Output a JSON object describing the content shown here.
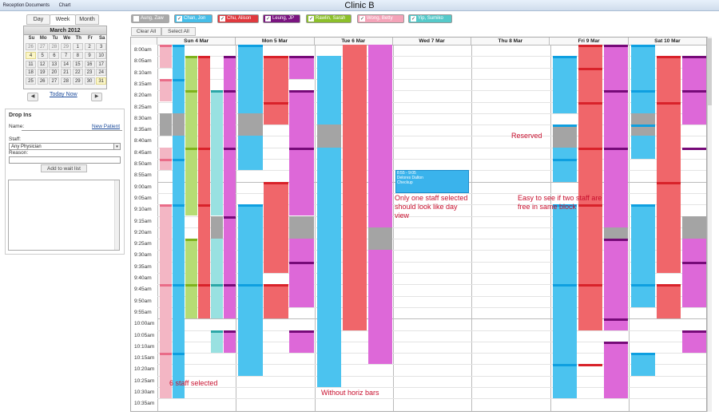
{
  "top_tabs": [
    "Reception",
    "Documents",
    "Chart"
  ],
  "clinic_title": "Clinic B",
  "view_tabs": [
    "Day",
    "Week",
    "Month"
  ],
  "calendar": {
    "month_label": "March 2012",
    "day_headers": [
      "Su",
      "Mo",
      "Tu",
      "We",
      "Th",
      "Fr",
      "Sa"
    ],
    "weeks": [
      [
        "26",
        "27",
        "28",
        "29",
        "1",
        "2",
        "3"
      ],
      [
        "4",
        "5",
        "6",
        "7",
        "8",
        "9",
        "10"
      ],
      [
        "11",
        "12",
        "13",
        "14",
        "15",
        "16",
        "17"
      ],
      [
        "18",
        "19",
        "20",
        "21",
        "22",
        "23",
        "24"
      ],
      [
        "25",
        "26",
        "27",
        "28",
        "29",
        "30",
        "31"
      ]
    ],
    "today_label": "Today",
    "now_label": "Now"
  },
  "drop_ins": {
    "title": "Drop Ins",
    "name_label": "Name:",
    "new_patient_link": "New Patient",
    "staff_label": "Staff:",
    "staff_value": "Any Physician",
    "reason_label": "Reason:",
    "add_button": "Add to wait list"
  },
  "staff": [
    {
      "name": "Aung, Zaw",
      "color": "#9b9b9b",
      "checked": false
    },
    {
      "name": "Chan, Jon",
      "color": "#45bde8",
      "checked": true
    },
    {
      "name": "Chu, Alison",
      "color": "#e0393e",
      "checked": true
    },
    {
      "name": "Leung, JP",
      "color": "#7a1480",
      "checked": true
    },
    {
      "name": "Rawlin, Sarah",
      "color": "#8cbf2a",
      "checked": true
    },
    {
      "name": "Wong, Betty",
      "color": "#f4a3b8",
      "checked": true
    },
    {
      "name": "Yip, Sumiko",
      "color": "#55c9c9",
      "checked": true
    }
  ],
  "select_buttons": {
    "clear": "Clear All",
    "select": "Select All"
  },
  "days": [
    "Sun 4 Mar",
    "Mon 5 Mar",
    "Tue 6 Mar",
    "Wed 7 Mar",
    "Thu 8 Mar",
    "Fri 9 Mar",
    "Sat 10 Mar"
  ],
  "times": [
    "8:00am",
    "8:05am",
    "8:10am",
    "8:15am",
    "8:20am",
    "8:25am",
    "8:30am",
    "8:35am",
    "8:40am",
    "8:45am",
    "8:50am",
    "8:55am",
    "9:00am",
    "9:05am",
    "9:10am",
    "9:15am",
    "9:20am",
    "9:25am",
    "9:30am",
    "9:35am",
    "9:40am",
    "9:45am",
    "9:50am",
    "9:55am",
    "10:00am",
    "10:05am",
    "10:10am",
    "10:15am",
    "10:20am",
    "10:25am",
    "10:30am",
    "10:35am"
  ],
  "event": {
    "time": "8:55 - 9:05",
    "patient": "Delores Dalton",
    "type": "Checkup"
  },
  "notes": {
    "only_one": "Only one staff selected should look like day view",
    "reserved": "Reserved",
    "two_staff": "Easy to see if two staff are free in same block",
    "six_staff": "6 staff selected",
    "without_bars": "Without horiz bars"
  }
}
